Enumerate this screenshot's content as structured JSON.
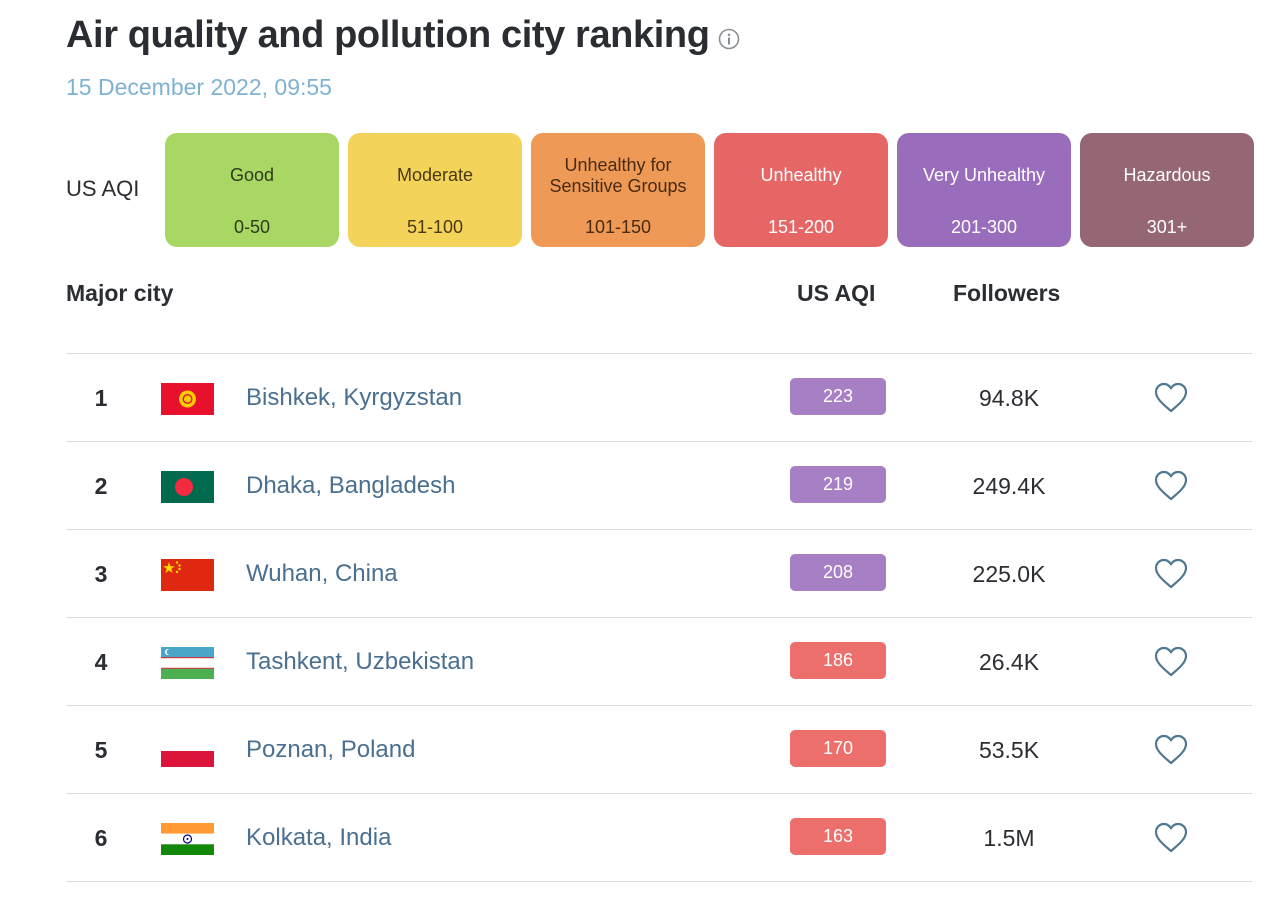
{
  "header": {
    "title": "Air quality and pollution city ranking",
    "timestamp": "15 December 2022, 09:55",
    "info_icon": "info-icon"
  },
  "legend": {
    "label": "US AQI",
    "levels": [
      {
        "name": "Good",
        "range": "0-50",
        "color": "#a8d863",
        "text_color": "#2f3a1c"
      },
      {
        "name": "Moderate",
        "range": "51-100",
        "color": "#f3d35a",
        "text_color": "#4a3a10"
      },
      {
        "name": "Unhealthy for Sensitive Groups",
        "range": "101-150",
        "color": "#ee9a56",
        "text_color": "#4a2a10"
      },
      {
        "name": "Unhealthy",
        "range": "151-200",
        "color": "#e66666",
        "text_color": "#ffffff"
      },
      {
        "name": "Very Unhealthy",
        "range": "201-300",
        "color": "#9a6dbc",
        "text_color": "#ffffff"
      },
      {
        "name": "Hazardous",
        "range": "301+",
        "color": "#956774",
        "text_color": "#ffffff"
      }
    ]
  },
  "table": {
    "headers": {
      "city": "Major city",
      "aqi": "US AQI",
      "followers": "Followers"
    },
    "rows": [
      {
        "rank": "1",
        "flag": "kyrgyzstan-flag",
        "city": "Bishkek, Kyrgyzstan",
        "aqi": "223",
        "aqi_color": "#a77fc4",
        "followers": "94.8K",
        "icon": "heart-icon"
      },
      {
        "rank": "2",
        "flag": "bangladesh-flag",
        "city": "Dhaka, Bangladesh",
        "aqi": "219",
        "aqi_color": "#a77fc4",
        "followers": "249.4K",
        "icon": "heart-icon"
      },
      {
        "rank": "3",
        "flag": "china-flag",
        "city": "Wuhan, China",
        "aqi": "208",
        "aqi_color": "#a77fc4",
        "followers": "225.0K",
        "icon": "heart-icon"
      },
      {
        "rank": "4",
        "flag": "uzbekistan-flag",
        "city": "Tashkent, Uzbekistan",
        "aqi": "186",
        "aqi_color": "#ec6f6c",
        "followers": "26.4K",
        "icon": "heart-icon"
      },
      {
        "rank": "5",
        "flag": "poland-flag",
        "city": "Poznan, Poland",
        "aqi": "170",
        "aqi_color": "#ec6f6c",
        "followers": "53.5K",
        "icon": "heart-icon"
      },
      {
        "rank": "6",
        "flag": "india-flag",
        "city": "Kolkata, India",
        "aqi": "163",
        "aqi_color": "#ec6f6c",
        "followers": "1.5M",
        "icon": "heart-icon"
      }
    ]
  }
}
